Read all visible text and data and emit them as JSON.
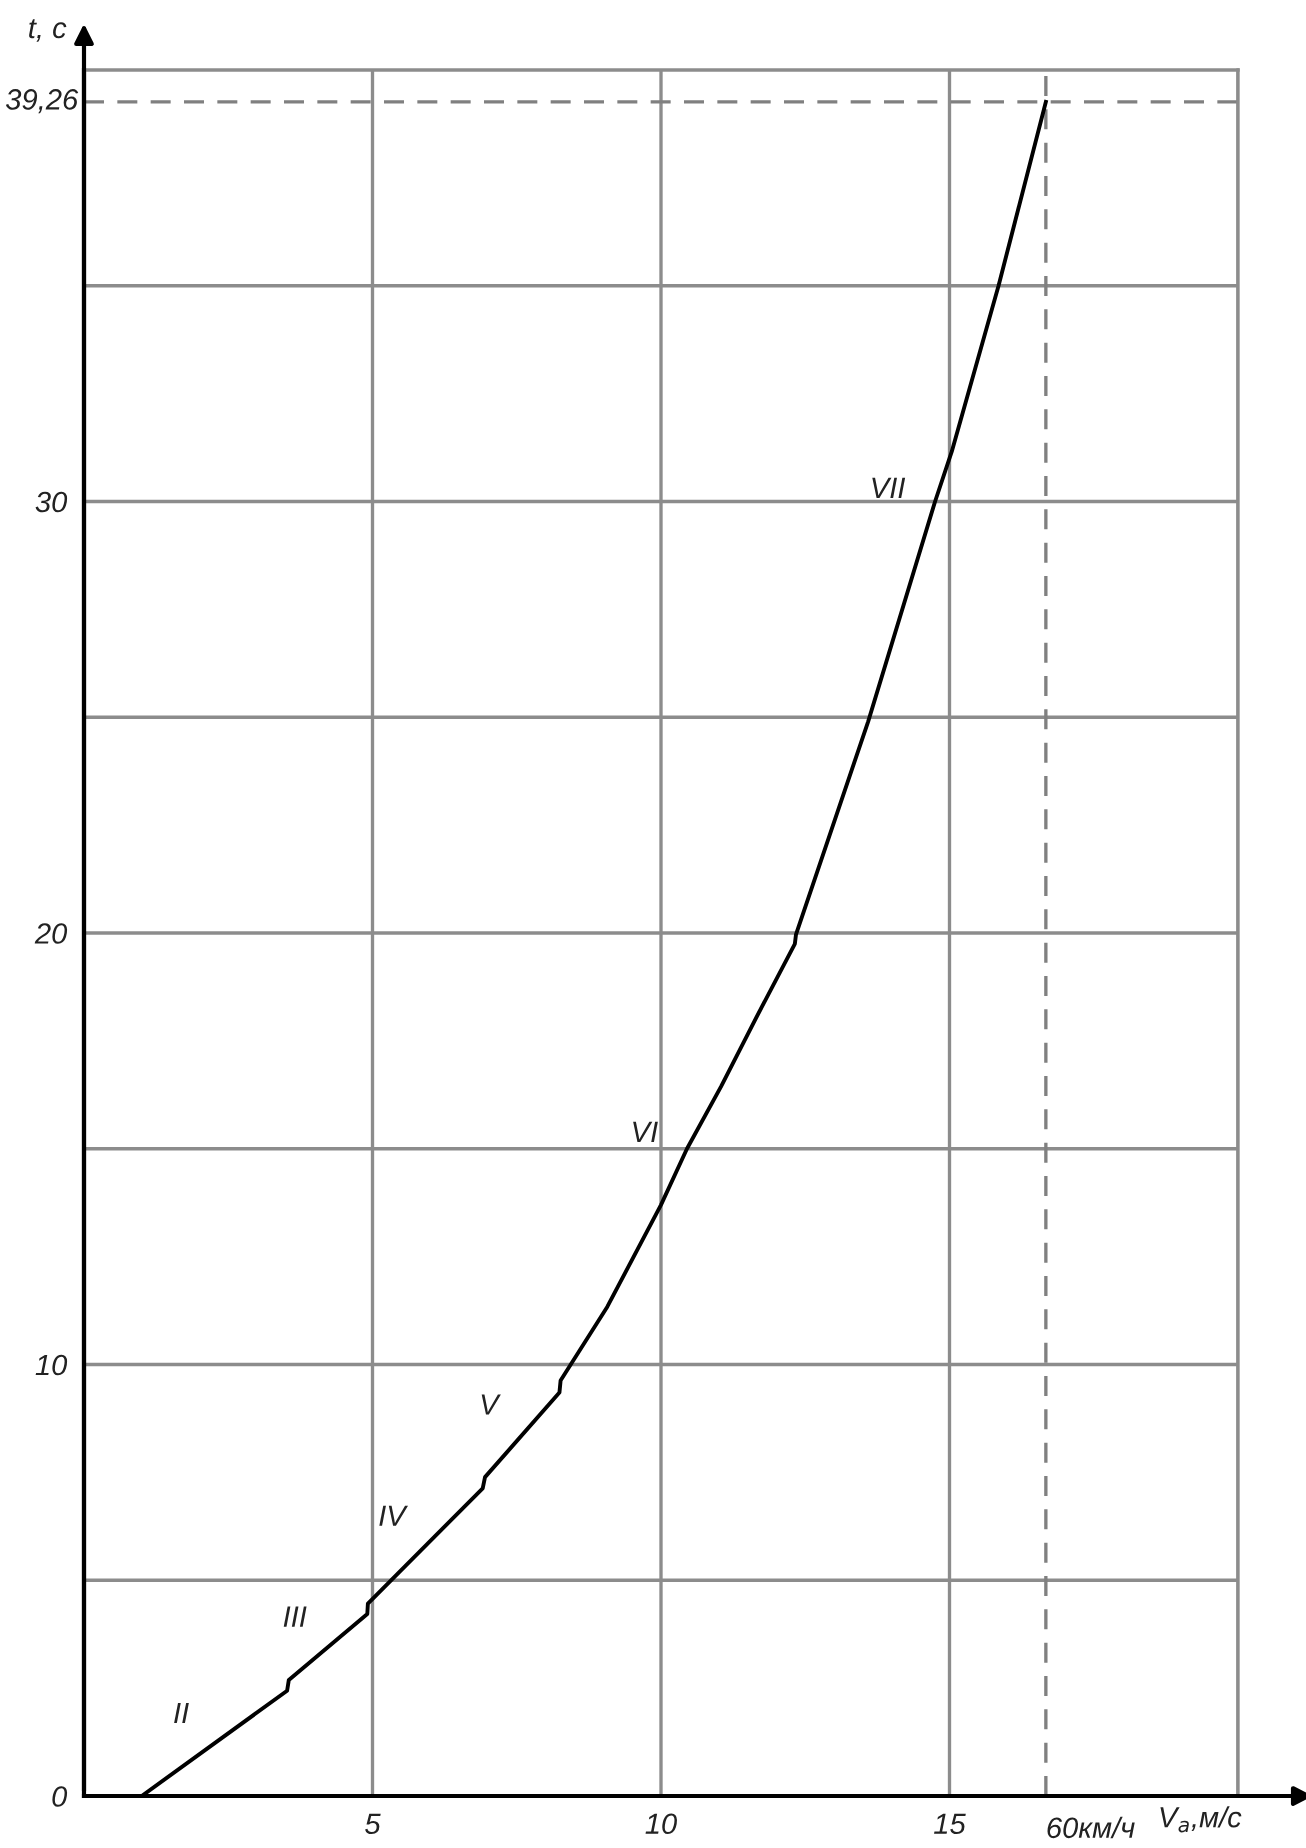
{
  "chart_data": {
    "type": "line",
    "xlabel": "V$_{a}$,м/с",
    "ylabel": "t, с",
    "series": [
      {
        "color": "#000000",
        "x": [
          1.0,
          3.52,
          3.55,
          4.91,
          4.92,
          6.91,
          6.95,
          8.24,
          8.26,
          9.07,
          10.0,
          10.45,
          11.04,
          11.62,
          12.32,
          12.34,
          13.59,
          14.75,
          15.04,
          15.85,
          16.67
        ],
        "values": [
          0,
          2.44,
          2.69,
          4.22,
          4.46,
          7.13,
          7.39,
          9.35,
          9.63,
          11.34,
          13.7,
          15.0,
          16.44,
          17.96,
          19.75,
          19.97,
          24.9,
          30.0,
          31.16,
          35.0,
          39.26
        ]
      }
    ],
    "annotations": [
      "II",
      "III",
      "IV",
      "V",
      "VI",
      "VII"
    ],
    "ref_lines": [
      {
        "axis": "x",
        "value": 16.67,
        "label": "60км/ч",
        "color": "#808080",
        "line_style": "dashed"
      },
      {
        "axis": "y",
        "value": 39.26,
        "label": "39,26",
        "color": "#808080",
        "line_style": "dashed"
      }
    ],
    "xlim": [
      0,
      20
    ],
    "ylim": [
      0,
      40
    ],
    "xticks": [
      5,
      10,
      15,
      {
        "value": 20,
        "label": null
      }
    ],
    "yticks": [
      0,
      {
        "value": 5,
        "label": null
      },
      10,
      {
        "value": 15,
        "label": null
      },
      20,
      {
        "value": 25,
        "label": null
      },
      30,
      {
        "value": 35,
        "label": null
      }
    ],
    "grid": true,
    "legend": false,
    "marker": "none",
    "line_style": "solid"
  }
}
